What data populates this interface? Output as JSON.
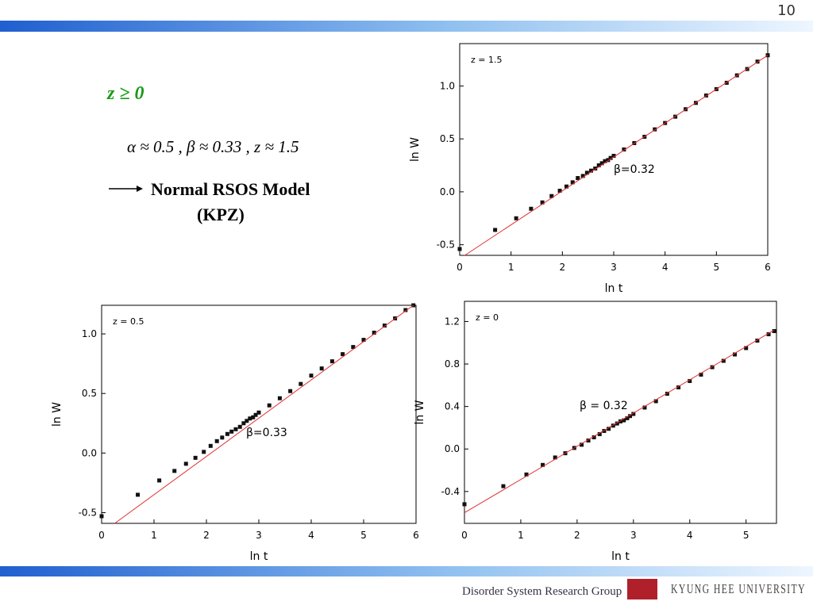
{
  "slide": {
    "page_number": "10",
    "heading": "z ≥ 0",
    "exponents": "α ≈ 0.5 ,  β ≈ 0.33 ,  z ≈ 1.5",
    "model": "Normal RSOS Model",
    "model_class": "(KPZ)",
    "group_logo": "Disorder System Research Group",
    "university_logo": "KYUNG HEE UNIVERSITY"
  },
  "chart_data": [
    {
      "type": "scatter",
      "annotation": "z = 1.5",
      "fit_label": "β=0.32",
      "x_label": "ln t",
      "y_label": "ln W",
      "xlim": [
        0,
        6
      ],
      "ylim": [
        -0.6,
        1.4
      ],
      "xticks": [
        0,
        1,
        2,
        3,
        4,
        5,
        6
      ],
      "yticks": [
        -0.5,
        {
          "value": 0,
          "label": "0.0"
        },
        0.5,
        {
          "value": 1,
          "label": "1.0"
        }
      ],
      "series": [
        {
          "color": "#111111",
          "mode": "markers",
          "x": [
            0,
            0.69,
            1.1,
            1.39,
            1.61,
            1.79,
            1.95,
            2.08,
            2.2,
            2.3,
            2.4,
            2.48,
            2.56,
            2.64,
            2.71,
            2.77,
            2.83,
            2.89,
            2.94,
            3.0,
            3.2,
            3.4,
            3.6,
            3.8,
            4.0,
            4.2,
            4.4,
            4.6,
            4.8,
            5.0,
            5.2,
            5.4,
            5.6,
            5.8,
            6.0
          ],
          "values": [
            -0.54,
            -0.36,
            -0.25,
            -0.16,
            -0.1,
            -0.04,
            0.01,
            0.05,
            0.09,
            0.13,
            0.15,
            0.18,
            0.2,
            0.22,
            0.25,
            0.27,
            0.29,
            0.3,
            0.32,
            0.34,
            0.4,
            0.46,
            0.52,
            0.59,
            0.65,
            0.71,
            0.78,
            0.84,
            0.91,
            0.97,
            1.03,
            1.1,
            1.16,
            1.23,
            1.29
          ]
        },
        {
          "color": "#e03030",
          "mode": "line",
          "x": [
            0.1,
            6.0
          ],
          "values": [
            -0.6,
            1.29
          ]
        }
      ]
    },
    {
      "type": "scatter",
      "annotation": "z = 0.5",
      "fit_label": "β=0.33",
      "x_label": "ln t",
      "y_label": "ln W",
      "xlim": [
        0,
        6
      ],
      "ylim": [
        -0.59,
        1.24
      ],
      "xticks": [
        0,
        1,
        2,
        3,
        4,
        5,
        6
      ],
      "yticks": [
        -0.5,
        {
          "value": 0,
          "label": "0.0"
        },
        0.5,
        {
          "value": 1,
          "label": "1.0"
        }
      ],
      "series": [
        {
          "color": "#111111",
          "mode": "markers",
          "x": [
            0,
            0.69,
            1.1,
            1.39,
            1.61,
            1.79,
            1.95,
            2.08,
            2.2,
            2.3,
            2.4,
            2.48,
            2.56,
            2.64,
            2.71,
            2.77,
            2.83,
            2.89,
            2.94,
            3.0,
            3.2,
            3.4,
            3.6,
            3.8,
            4.0,
            4.2,
            4.4,
            4.6,
            4.8,
            5.0,
            5.2,
            5.4,
            5.6,
            5.8,
            5.95
          ],
          "values": [
            -0.53,
            -0.35,
            -0.23,
            -0.15,
            -0.09,
            -0.04,
            0.01,
            0.06,
            0.1,
            0.13,
            0.16,
            0.18,
            0.2,
            0.22,
            0.25,
            0.27,
            0.29,
            0.3,
            0.32,
            0.34,
            0.4,
            0.46,
            0.52,
            0.58,
            0.65,
            0.71,
            0.77,
            0.83,
            0.89,
            0.95,
            1.01,
            1.07,
            1.13,
            1.2,
            1.24
          ]
        },
        {
          "color": "#e03030",
          "mode": "line",
          "x": [
            0.25,
            5.95
          ],
          "values": [
            -0.59,
            1.24
          ]
        }
      ]
    },
    {
      "type": "scatter",
      "annotation": "z = 0",
      "fit_label": "β = 0.32",
      "x_label": "ln t",
      "y_label": "ln W",
      "xlim": [
        0,
        5.54
      ],
      "ylim": [
        -0.7,
        1.39
      ],
      "xticks": [
        0,
        1,
        2,
        3,
        4,
        5
      ],
      "yticks": [
        -0.4,
        {
          "value": 0,
          "label": "0.0"
        },
        0.4,
        0.8,
        1.2
      ],
      "series": [
        {
          "color": "#111111",
          "mode": "markers",
          "x": [
            0,
            0.69,
            1.1,
            1.39,
            1.61,
            1.79,
            1.95,
            2.08,
            2.2,
            2.3,
            2.4,
            2.48,
            2.56,
            2.64,
            2.71,
            2.77,
            2.83,
            2.89,
            2.94,
            3.0,
            3.2,
            3.4,
            3.6,
            3.8,
            4.0,
            4.2,
            4.4,
            4.6,
            4.8,
            5.0,
            5.2,
            5.4,
            5.5
          ],
          "values": [
            -0.52,
            -0.35,
            -0.24,
            -0.15,
            -0.08,
            -0.04,
            0.01,
            0.04,
            0.08,
            0.11,
            0.14,
            0.17,
            0.19,
            0.22,
            0.24,
            0.26,
            0.27,
            0.29,
            0.31,
            0.33,
            0.39,
            0.45,
            0.52,
            0.58,
            0.64,
            0.7,
            0.77,
            0.83,
            0.89,
            0.95,
            1.02,
            1.08,
            1.11
          ]
        },
        {
          "color": "#e03030",
          "mode": "line",
          "x": [
            0,
            5.5
          ],
          "values": [
            -0.6,
            1.12
          ]
        }
      ]
    }
  ]
}
